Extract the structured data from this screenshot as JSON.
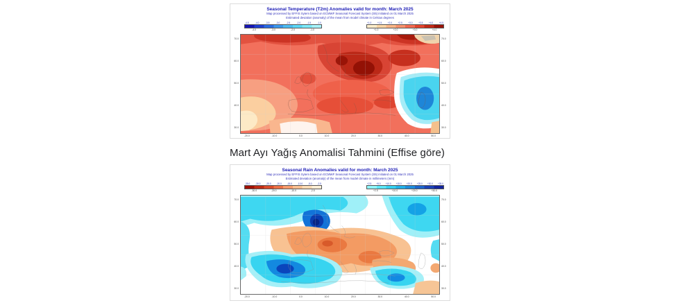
{
  "page": {
    "background": "#ffffff"
  },
  "heading": {
    "text": "Mart Ayı Yağış Anomalisi Tahmini (Effise göre)"
  },
  "figures": [
    {
      "name": "temperature-anomaly-map",
      "title": "Seasonal Temperature (T2m) Anomalies valid for month: March 2025",
      "subtitle1": "Map processed by EFFIS Sytem based on ECMWF Seasonal Forecast System (S5) initiated on 01 March 2025",
      "subtitle2": "Estimated deviation (anomaly) of the mean from model climate in Celsius degrees",
      "colorbar": {
        "negative": {
          "ticks": [
            "-4.5",
            "-4.0",
            "-3.5",
            "-3.0",
            "-2.5",
            "-2.0",
            "-1.5",
            "-1.0"
          ],
          "labels": [
            "-4.0",
            "-3.0",
            "-2.0",
            "-1.0"
          ],
          "colors": [
            "#1616b4",
            "#1f3fd0",
            "#2a6ce2",
            "#3b97ec",
            "#4cbcf2",
            "#5cd8f6",
            "#7deafa",
            "#a8f3fc"
          ]
        },
        "positive": {
          "ticks": [
            "+1.0",
            "+1.5",
            "+2.0",
            "+2.5",
            "+3.0",
            "+3.5",
            "+4.0",
            "+4.5"
          ],
          "labels": [
            "+1.0",
            "+2.0",
            "+3.0",
            "+4.0"
          ],
          "colors": [
            "#fdecca",
            "#fbd5a5",
            "#f9b688",
            "#f6926e",
            "#f26a52",
            "#e2452f",
            "#c22a18",
            "#99130a"
          ]
        }
      },
      "axes": {
        "lat": [
          "70.0",
          "60.0",
          "50.0",
          "40.0",
          "30.0"
        ],
        "lon": [
          "-20.0",
          "-10.0",
          "0.0",
          "10.0",
          "20.0",
          "30.0",
          "40.0",
          "50.0"
        ]
      }
    },
    {
      "name": "rain-anomaly-map",
      "title": "Seasonal Rain Anomalies valid for month: March 2025",
      "subtitle1": "Map processed by EFFIS Sytem based on ECMWF Seasonal Forecast System (S5) initiated on 01 March 2025",
      "subtitle2": "Estimated deviation (anomaly) of the mean from model climate in millimeters (mm)",
      "colorbar": {
        "negative": {
          "ticks": [
            "-35.0",
            "-30.0",
            "-25.0",
            "-20.0",
            "-15.0",
            "-10.0",
            "-5.0",
            "-2.5"
          ],
          "labels": [
            "-30.0",
            "-20.0",
            "-10.0",
            "-2.5"
          ],
          "colors": [
            "#a01005",
            "#c02c15",
            "#da4c2c",
            "#ec7248",
            "#f79c6e",
            "#fbc092",
            "#fddcb6",
            "#feefd6"
          ]
        },
        "positive": {
          "ticks": [
            "+2.5",
            "+5.0",
            "+10.0",
            "+15.0",
            "+20.0",
            "+25.0",
            "+30.0",
            "+35.0"
          ],
          "labels": [
            "+2.5",
            "+10.0",
            "+20.0",
            "+30.0"
          ],
          "colors": [
            "#8ef4f9",
            "#5ce6f6",
            "#35d0f0",
            "#22b0e8",
            "#1f8cdc",
            "#1f66cc",
            "#1c42b6",
            "#12249e"
          ]
        }
      },
      "axes": {
        "lat": [
          "70.0",
          "60.0",
          "50.0",
          "40.0",
          "30.0"
        ],
        "lon": [
          "-20.0",
          "-10.0",
          "0.0",
          "10.0",
          "20.0",
          "30.0",
          "40.0",
          "50.0"
        ]
      }
    }
  ],
  "colors": {
    "title_text": "#1b1bb5",
    "subtitle_text": "#3333bb",
    "figure_border": "#dcdcdc",
    "heading_text": "#202124"
  }
}
